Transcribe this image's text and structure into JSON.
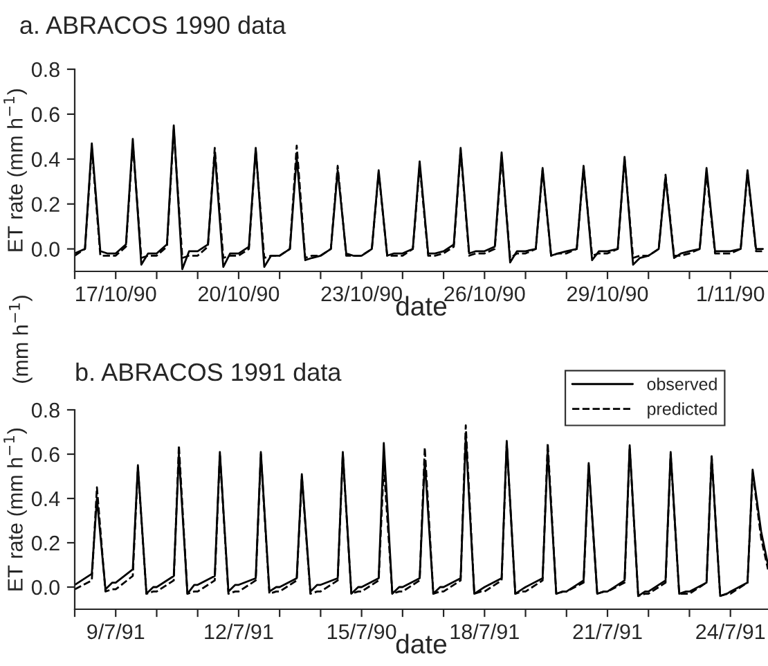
{
  "chart_data": [
    {
      "type": "line",
      "title": "a. ABRACOS 1990 data",
      "xlabel": "date",
      "ylabel": "ET rate (mm h$^{−1}$)",
      "annotations": [
        "(mm h$^{−1}$)"
      ],
      "x": [
        "1990-10-16T00:00",
        "1990-10-16T06:00",
        "1990-10-16T10:00",
        "1990-10-16T15:00",
        "1990-10-16T19:00",
        "1990-10-17T00:00",
        "1990-10-17T06:00",
        "1990-10-17T10:00",
        "1990-10-17T15:00",
        "1990-10-17T19:00",
        "1990-10-18T00:00",
        "1990-10-18T06:00",
        "1990-10-18T10:00",
        "1990-10-18T15:00",
        "1990-10-18T19:00",
        "1990-10-19T00:00",
        "1990-10-19T06:00",
        "1990-10-19T10:00",
        "1990-10-19T15:00",
        "1990-10-19T19:00",
        "1990-10-20T00:00",
        "1990-10-20T06:00",
        "1990-10-20T10:00",
        "1990-10-20T15:00",
        "1990-10-20T19:00",
        "1990-10-21T00:00",
        "1990-10-21T06:00",
        "1990-10-21T10:00",
        "1990-10-21T15:00",
        "1990-10-21T19:00",
        "1990-10-22T00:00",
        "1990-10-22T06:00",
        "1990-10-22T10:00",
        "1990-10-22T15:00",
        "1990-10-22T19:00",
        "1990-10-23T00:00",
        "1990-10-23T06:00",
        "1990-10-23T10:00",
        "1990-10-23T15:00",
        "1990-10-23T19:00",
        "1990-10-24T00:00",
        "1990-10-24T06:00",
        "1990-10-24T10:00",
        "1990-10-24T15:00",
        "1990-10-24T19:00",
        "1990-10-25T00:00",
        "1990-10-25T06:00",
        "1990-10-25T10:00",
        "1990-10-25T15:00",
        "1990-10-25T19:00",
        "1990-10-26T00:00",
        "1990-10-26T06:00",
        "1990-10-26T10:00",
        "1990-10-26T15:00",
        "1990-10-26T19:00",
        "1990-10-27T00:00",
        "1990-10-27T06:00",
        "1990-10-27T10:00",
        "1990-10-27T15:00",
        "1990-10-27T19:00",
        "1990-10-28T00:00",
        "1990-10-28T06:00",
        "1990-10-28T10:00",
        "1990-10-28T15:00",
        "1990-10-28T19:00",
        "1990-10-29T00:00",
        "1990-10-29T06:00",
        "1990-10-29T10:00",
        "1990-10-29T15:00",
        "1990-10-29T19:00",
        "1990-10-30T00:00",
        "1990-10-30T06:00",
        "1990-10-30T10:00",
        "1990-10-30T15:00",
        "1990-10-30T19:00",
        "1990-10-31T00:00",
        "1990-10-31T06:00",
        "1990-10-31T10:00",
        "1990-10-31T15:00",
        "1990-10-31T19:00",
        "1990-11-01T00:00",
        "1990-11-01T06:00",
        "1990-11-01T10:00",
        "1990-11-01T15:00",
        "1990-11-01T19:00"
      ],
      "series": [
        {
          "color": "#000000",
          "line_style": "solid",
          "values": [
            -0.02,
            0.0,
            0.47,
            -0.01,
            -0.02,
            -0.02,
            0.02,
            0.49,
            -0.07,
            -0.02,
            -0.02,
            0.02,
            0.55,
            -0.09,
            -0.01,
            -0.01,
            0.02,
            0.43,
            -0.08,
            -0.02,
            -0.02,
            0.01,
            0.45,
            -0.08,
            -0.03,
            -0.03,
            0.0,
            0.41,
            -0.05,
            -0.04,
            -0.03,
            0.0,
            0.35,
            -0.02,
            -0.03,
            -0.03,
            0.0,
            0.35,
            -0.03,
            -0.02,
            -0.02,
            0.0,
            0.39,
            -0.02,
            -0.02,
            -0.01,
            0.02,
            0.45,
            -0.02,
            -0.01,
            -0.01,
            0.01,
            0.43,
            -0.06,
            -0.01,
            -0.01,
            0.0,
            0.36,
            -0.03,
            -0.02,
            -0.01,
            0.0,
            0.37,
            -0.05,
            -0.01,
            -0.01,
            0.0,
            0.41,
            -0.07,
            -0.04,
            -0.03,
            0.0,
            0.32,
            -0.04,
            -0.02,
            -0.01,
            0.0,
            0.36,
            -0.01,
            -0.01,
            -0.01,
            0.0,
            0.35,
            0.0,
            0.0
          ]
        },
        {
          "color": "#000000",
          "line_style": "dashed",
          "values": [
            -0.03,
            0.0,
            0.45,
            -0.03,
            -0.03,
            -0.03,
            0.01,
            0.47,
            -0.04,
            -0.03,
            -0.03,
            0.01,
            0.53,
            -0.04,
            -0.03,
            -0.03,
            0.01,
            0.45,
            -0.04,
            -0.03,
            -0.03,
            0.0,
            0.44,
            -0.04,
            -0.03,
            -0.03,
            0.0,
            0.46,
            -0.04,
            -0.03,
            -0.03,
            0.0,
            0.37,
            -0.03,
            -0.03,
            -0.03,
            0.0,
            0.34,
            -0.03,
            -0.03,
            -0.03,
            0.0,
            0.37,
            -0.03,
            -0.03,
            -0.02,
            0.01,
            0.44,
            -0.03,
            -0.02,
            -0.02,
            0.0,
            0.41,
            -0.04,
            -0.02,
            -0.02,
            0.0,
            0.35,
            -0.03,
            -0.02,
            -0.02,
            0.0,
            0.36,
            -0.03,
            -0.02,
            -0.02,
            0.0,
            0.4,
            -0.04,
            -0.03,
            -0.03,
            0.0,
            0.33,
            -0.03,
            -0.03,
            -0.02,
            0.0,
            0.34,
            -0.02,
            -0.02,
            -0.02,
            0.0,
            0.34,
            -0.01,
            -0.01
          ]
        }
      ],
      "xlim": [
        "1990-10-16T00:00",
        "1990-11-01T22:00"
      ],
      "ylim": [
        -0.1,
        0.8
      ],
      "xticks": [
        {
          "value": "1990-10-16",
          "label": null
        },
        {
          "value": "1990-10-17",
          "label": "17/10/90"
        },
        {
          "value": "1990-10-18",
          "label": null
        },
        {
          "value": "1990-10-19",
          "label": null
        },
        {
          "value": "1990-10-20",
          "label": "20/10/90"
        },
        {
          "value": "1990-10-21",
          "label": null
        },
        {
          "value": "1990-10-22",
          "label": null
        },
        {
          "value": "1990-10-23",
          "label": "23/10/90"
        },
        {
          "value": "1990-10-24",
          "label": null
        },
        {
          "value": "1990-10-25",
          "label": null
        },
        {
          "value": "1990-10-26",
          "label": "26/10/90"
        },
        {
          "value": "1990-10-27",
          "label": null
        },
        {
          "value": "1990-10-28",
          "label": null
        },
        {
          "value": "1990-10-29",
          "label": "29/10/90"
        },
        {
          "value": "1990-10-30",
          "label": null
        },
        {
          "value": "1990-10-31",
          "label": null
        },
        {
          "value": "1990-11-01",
          "label": "1/11/90"
        }
      ],
      "yticks": [
        {
          "value": 0,
          "label": "0.0"
        },
        0.2,
        0.4,
        0.6,
        0.8
      ],
      "grid": false,
      "legend": false
    },
    {
      "type": "line",
      "title": "b. ABRACOS 1991 data",
      "xlabel": "date",
      "ylabel": "ET rate (mm h$^{−1}$)",
      "x": [
        "1991-07-08T00:00",
        "1991-07-08T10:00",
        "1991-07-08T13:00",
        "1991-07-08T18:00",
        "1991-07-08T22:00",
        "1991-07-09T00:00",
        "1991-07-09T10:00",
        "1991-07-09T13:00",
        "1991-07-09T18:00",
        "1991-07-09T22:00",
        "1991-07-10T00:00",
        "1991-07-10T10:00",
        "1991-07-10T13:00",
        "1991-07-10T18:00",
        "1991-07-10T22:00",
        "1991-07-11T00:00",
        "1991-07-11T10:00",
        "1991-07-11T13:00",
        "1991-07-11T18:00",
        "1991-07-11T22:00",
        "1991-07-12T00:00",
        "1991-07-12T10:00",
        "1991-07-12T13:00",
        "1991-07-12T18:00",
        "1991-07-12T22:00",
        "1991-07-13T00:00",
        "1991-07-13T10:00",
        "1991-07-13T13:00",
        "1991-07-13T18:00",
        "1991-07-13T22:00",
        "1991-07-14T00:00",
        "1991-07-14T10:00",
        "1991-07-14T13:00",
        "1991-07-14T18:00",
        "1991-07-14T22:00",
        "1991-07-15T00:00",
        "1991-07-15T10:00",
        "1991-07-15T13:00",
        "1991-07-15T18:00",
        "1991-07-15T22:00",
        "1991-07-16T00:00",
        "1991-07-16T10:00",
        "1991-07-16T13:00",
        "1991-07-16T18:00",
        "1991-07-16T22:00",
        "1991-07-17T00:00",
        "1991-07-17T10:00",
        "1991-07-17T13:00",
        "1991-07-17T18:00",
        "1991-07-17T22:00",
        "1991-07-18T00:00",
        "1991-07-18T10:00",
        "1991-07-18T13:00",
        "1991-07-18T18:00",
        "1991-07-18T22:00",
        "1991-07-19T00:00",
        "1991-07-19T10:00",
        "1991-07-19T13:00",
        "1991-07-19T18:00",
        "1991-07-19T22:00",
        "1991-07-20T00:00",
        "1991-07-20T10:00",
        "1991-07-20T13:00",
        "1991-07-20T18:00",
        "1991-07-20T22:00",
        "1991-07-21T00:00",
        "1991-07-21T10:00",
        "1991-07-21T13:00",
        "1991-07-21T18:00",
        "1991-07-21T22:00",
        "1991-07-22T00:00",
        "1991-07-22T10:00",
        "1991-07-22T13:00",
        "1991-07-22T18:00",
        "1991-07-22T22:00",
        "1991-07-23T00:00",
        "1991-07-23T10:00",
        "1991-07-23T13:00",
        "1991-07-23T18:00",
        "1991-07-23T22:00",
        "1991-07-24T00:00",
        "1991-07-24T10:00",
        "1991-07-24T13:00",
        "1991-07-24T18:00",
        "1991-07-24T22:00"
      ],
      "series": [
        {
          "name": "observed",
          "color": "#000000",
          "line_style": "solid",
          "values": [
            0.01,
            0.06,
            0.4,
            -0.01,
            0.02,
            0.02,
            0.08,
            0.55,
            -0.03,
            0.0,
            0.0,
            0.05,
            0.6,
            -0.03,
            0.01,
            0.01,
            0.05,
            0.61,
            -0.02,
            0.01,
            0.01,
            0.04,
            0.61,
            -0.02,
            0.0,
            0.0,
            0.04,
            0.51,
            -0.02,
            0.01,
            0.01,
            0.04,
            0.61,
            -0.03,
            0.0,
            0.0,
            0.04,
            0.65,
            -0.03,
            0.0,
            0.0,
            0.04,
            0.57,
            -0.03,
            0.0,
            0.0,
            0.04,
            0.68,
            -0.03,
            -0.01,
            0.0,
            0.04,
            0.66,
            -0.03,
            -0.01,
            0.0,
            0.04,
            0.62,
            -0.03,
            -0.02,
            -0.02,
            0.03,
            0.56,
            -0.03,
            -0.02,
            -0.02,
            0.03,
            0.64,
            -0.04,
            -0.02,
            -0.02,
            0.03,
            0.61,
            -0.03,
            -0.02,
            -0.02,
            0.02,
            0.59,
            -0.04,
            -0.03,
            -0.02,
            0.02,
            0.53,
            0.25,
            0.1
          ]
        },
        {
          "name": "predicted",
          "color": "#000000",
          "line_style": "dashed",
          "values": [
            -0.01,
            0.03,
            0.45,
            -0.02,
            -0.01,
            -0.01,
            0.05,
            0.54,
            -0.03,
            -0.02,
            -0.02,
            0.03,
            0.64,
            -0.03,
            -0.02,
            -0.02,
            0.03,
            0.6,
            -0.03,
            -0.02,
            -0.02,
            0.03,
            0.6,
            -0.03,
            -0.02,
            -0.02,
            0.03,
            0.5,
            -0.03,
            -0.02,
            -0.02,
            0.03,
            0.6,
            -0.03,
            -0.02,
            -0.02,
            0.03,
            0.55,
            -0.03,
            -0.02,
            -0.02,
            0.03,
            0.63,
            -0.03,
            -0.02,
            -0.02,
            0.03,
            0.73,
            -0.03,
            -0.02,
            -0.02,
            0.03,
            0.65,
            -0.03,
            -0.02,
            -0.02,
            0.03,
            0.65,
            -0.03,
            -0.02,
            -0.02,
            0.02,
            0.55,
            -0.03,
            -0.02,
            -0.02,
            0.02,
            0.63,
            -0.04,
            -0.03,
            -0.03,
            0.02,
            0.6,
            -0.03,
            -0.03,
            -0.03,
            0.02,
            0.59,
            -0.04,
            -0.03,
            -0.03,
            0.02,
            0.52,
            0.22,
            0.08
          ]
        }
      ],
      "xlim": [
        "1991-07-08T00:00",
        "1991-07-24T22:00"
      ],
      "ylim": [
        -0.1,
        0.8
      ],
      "xticks": [
        {
          "value": "1991-07-08",
          "label": null
        },
        {
          "value": "1991-07-09",
          "label": "9/7/91"
        },
        {
          "value": "1991-07-10",
          "label": null
        },
        {
          "value": "1991-07-11",
          "label": null
        },
        {
          "value": "1991-07-12",
          "label": "12/7/91"
        },
        {
          "value": "1991-07-13",
          "label": null
        },
        {
          "value": "1991-07-14",
          "label": null
        },
        {
          "value": "1991-07-15",
          "label": "15/7/90"
        },
        {
          "value": "1991-07-16",
          "label": null
        },
        {
          "value": "1991-07-17",
          "label": null
        },
        {
          "value": "1991-07-18",
          "label": "18/7/91"
        },
        {
          "value": "1991-07-19",
          "label": null
        },
        {
          "value": "1991-07-20",
          "label": null
        },
        {
          "value": "1991-07-21",
          "label": "21/7/91"
        },
        {
          "value": "1991-07-22",
          "label": null
        },
        {
          "value": "1991-07-23",
          "label": null
        },
        {
          "value": "1991-07-24",
          "label": "24/7/91"
        }
      ],
      "yticks": [
        {
          "value": 0,
          "label": "0.0"
        },
        0.2,
        0.4,
        0.6,
        0.8
      ],
      "grid": false,
      "legend": "top right"
    }
  ]
}
